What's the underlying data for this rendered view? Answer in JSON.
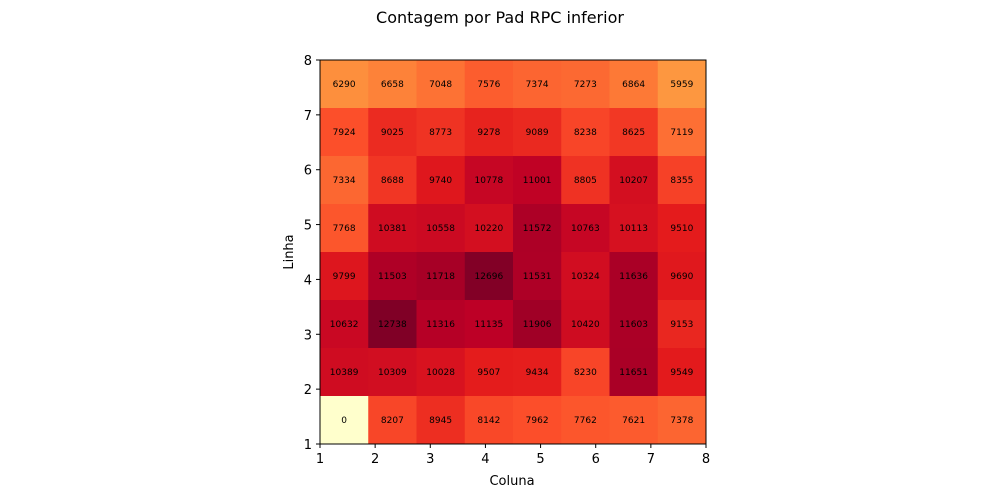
{
  "chart_data": {
    "type": "heatmap",
    "title": "Contagem por Pad RPC inferior",
    "xlabel": "Coluna",
    "ylabel": "Linha",
    "xlim": [
      1,
      8
    ],
    "ylim": [
      1,
      8
    ],
    "xticks": [
      "1",
      "2",
      "3",
      "4",
      "5",
      "6",
      "7",
      "8"
    ],
    "yticks": [
      "1",
      "2",
      "3",
      "4",
      "5",
      "6",
      "7",
      "8"
    ],
    "colormap": [
      "#ffffcc",
      "#ffeda0",
      "#fed976",
      "#feb24c",
      "#fd8d3c",
      "#fc4e2a",
      "#e31a1c",
      "#bd0026",
      "#800026"
    ],
    "vmin": 0,
    "vmax": 12738,
    "rows_top_to_bottom": [
      [
        6290,
        6658,
        7048,
        7576,
        7374,
        7273,
        6864,
        5959
      ],
      [
        7924,
        9025,
        8773,
        9278,
        9089,
        8238,
        8625,
        7119
      ],
      [
        7334,
        8688,
        9740,
        10778,
        11001,
        8805,
        10207,
        8355
      ],
      [
        7768,
        10381,
        10558,
        10220,
        11572,
        10763,
        10113,
        9510
      ],
      [
        9799,
        11503,
        11718,
        12696,
        11531,
        10324,
        11636,
        9690
      ],
      [
        10632,
        12738,
        11316,
        11135,
        11906,
        10420,
        11603,
        9153
      ],
      [
        10389,
        10309,
        10028,
        9507,
        9434,
        8230,
        11651,
        9549
      ],
      [
        0,
        8207,
        8945,
        8142,
        7962,
        7762,
        7621,
        7378
      ]
    ]
  }
}
